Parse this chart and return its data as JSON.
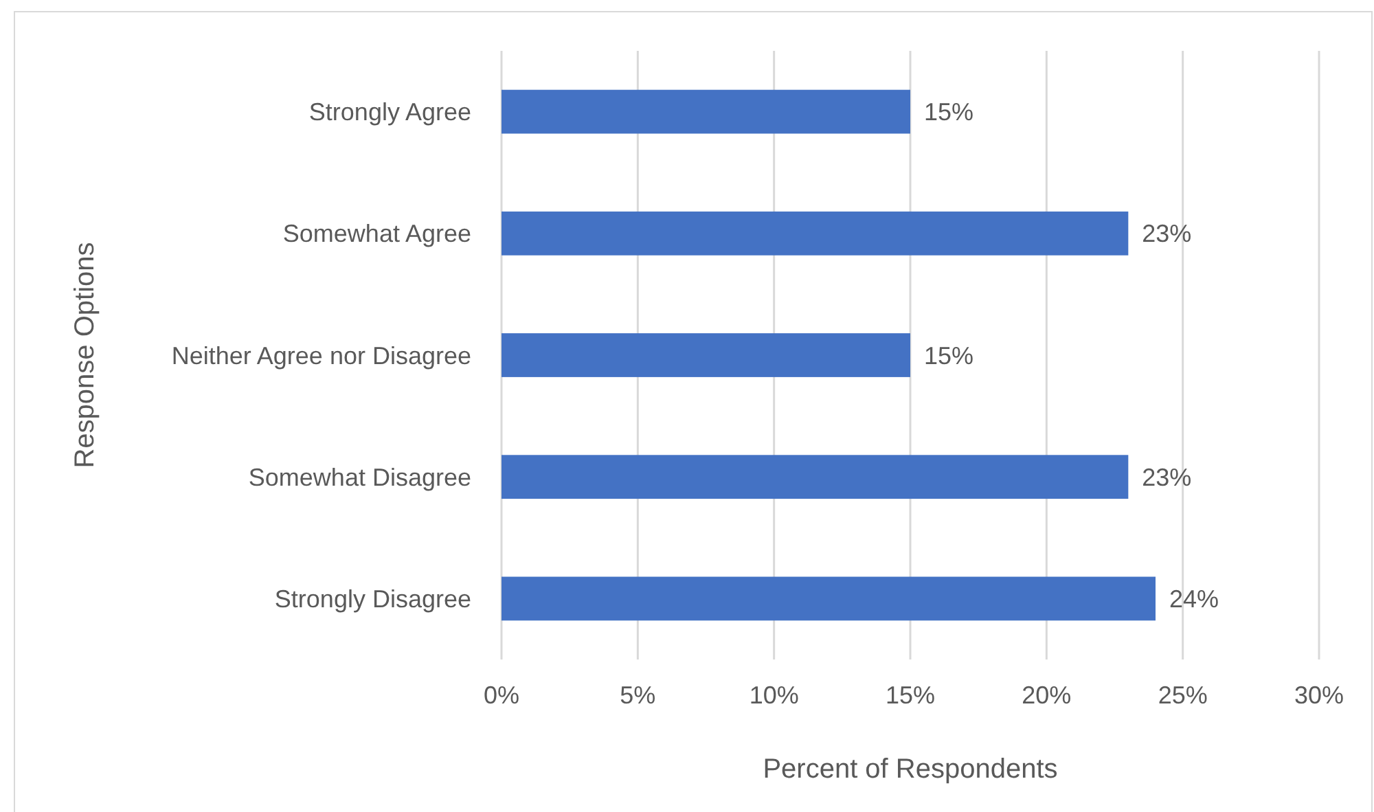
{
  "chart_data": {
    "type": "bar",
    "orientation": "horizontal",
    "ylabel": "Response Options",
    "xlabel": "Percent of Respondents",
    "categories": [
      "Strongly Agree",
      "Somewhat Agree",
      "Neither Agree nor Disagree",
      "Somewhat Disagree",
      "Strongly Disagree"
    ],
    "values": [
      15,
      23,
      15,
      23,
      24
    ],
    "color": "#4472c4",
    "value_labels": [
      "15%",
      "23%",
      "15%",
      "23%",
      "24%"
    ],
    "xlim": [
      0,
      30
    ],
    "xticks": [
      {
        "value": 0,
        "label": "0%"
      },
      {
        "value": 5,
        "label": "5%"
      },
      {
        "value": 10,
        "label": "10%"
      },
      {
        "value": 15,
        "label": "15%"
      },
      {
        "value": 20,
        "label": "20%"
      },
      {
        "value": 25,
        "label": "25%"
      },
      {
        "value": 30,
        "label": "30%"
      }
    ],
    "grid": "x"
  }
}
